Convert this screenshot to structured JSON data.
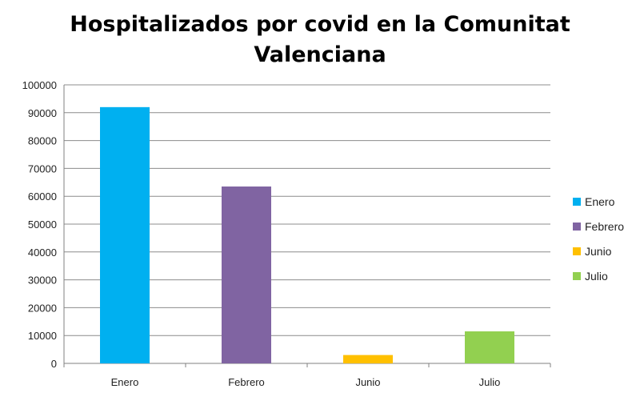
{
  "chart_data": {
    "type": "bar",
    "title": "Hospitalizados por covid en la Comunitat Valenciana",
    "title_lines": [
      "Hospitalizados por covid en la Comunitat",
      "Valenciana"
    ],
    "categories": [
      "Enero",
      "Febrero",
      "Junio",
      "Julio"
    ],
    "values": [
      92000,
      63500,
      3000,
      11500
    ],
    "colors": [
      "#00b0f0",
      "#8064a2",
      "#ffc000",
      "#92d050"
    ],
    "ylim": [
      0,
      100000
    ],
    "yticks": [
      0,
      10000,
      20000,
      30000,
      40000,
      50000,
      60000,
      70000,
      80000,
      90000,
      100000
    ],
    "xlabel": "",
    "ylabel": "",
    "grid": true,
    "legend_position": "right",
    "legend": [
      "Enero",
      "Febrero",
      "Junio",
      "Julio"
    ]
  }
}
